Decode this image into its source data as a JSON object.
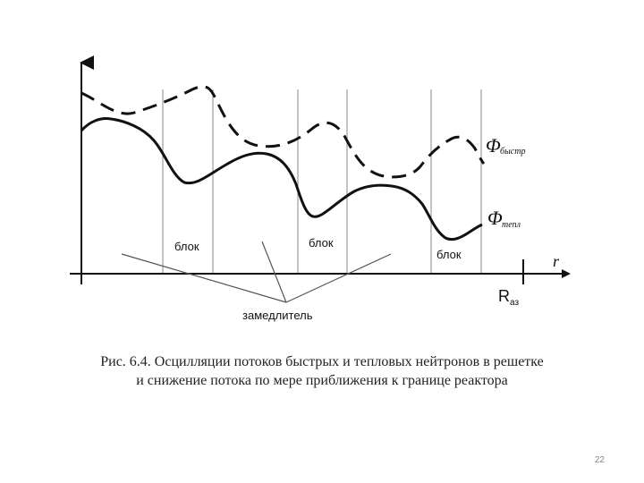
{
  "figure": {
    "labels": {
      "phi_fast": "Φ",
      "phi_fast_sub": "быстр",
      "phi_thermal": "Φ",
      "phi_thermal_sub": "тепл",
      "axis_r": "r",
      "r_az": "R",
      "r_az_sub": "аз",
      "block_1": "блок",
      "block_2": "блок",
      "block_3": "блок",
      "moderator": "замедлитель"
    },
    "style": {
      "curve_color": "#111111",
      "grid_color": "#888888"
    }
  },
  "caption": {
    "line1": "Рис. 6.4. Осцилляции потоков быстрых и тепловых нейтронов в решетке",
    "line2": "и снижение потока по мере приближения к границе реактора"
  },
  "page_number": "22"
}
